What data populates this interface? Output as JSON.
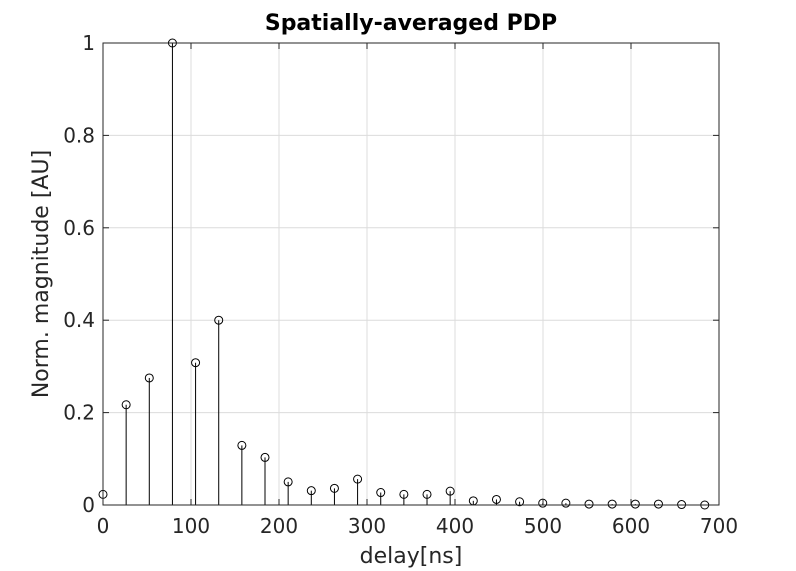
{
  "chart_data": {
    "type": "stem",
    "title": "Spatially-averaged PDP",
    "xlabel": "delay[ns]",
    "ylabel": "Norm. magnitude [AU]",
    "xlim": [
      0,
      700
    ],
    "ylim": [
      0,
      1
    ],
    "xticks": [
      "0",
      "100",
      "200",
      "300",
      "400",
      "500",
      "600",
      "700"
    ],
    "yticks": [
      "0",
      "0.2",
      "0.4",
      "0.6",
      "0.8",
      "1"
    ],
    "grid": true,
    "marker": "open-circle",
    "series": [
      {
        "x": [
          0,
          26.3,
          52.6,
          78.9,
          105.2,
          131.5,
          157.8,
          184.1,
          210.4,
          236.7,
          263,
          289.3,
          315.6,
          341.9,
          368.2,
          394.5,
          420.8,
          447.1,
          473.4,
          499.7,
          526,
          552.3,
          578.6,
          604.9,
          631.2,
          657.5,
          683.8
        ],
        "y": [
          0.023,
          0.217,
          0.275,
          1.0,
          0.308,
          0.4,
          0.129,
          0.103,
          0.05,
          0.031,
          0.036,
          0.056,
          0.027,
          0.023,
          0.023,
          0.03,
          0.009,
          0.012,
          0.007,
          0.004,
          0.004,
          0.002,
          0.002,
          0.002,
          0.002,
          0.001,
          0.0
        ]
      }
    ]
  }
}
